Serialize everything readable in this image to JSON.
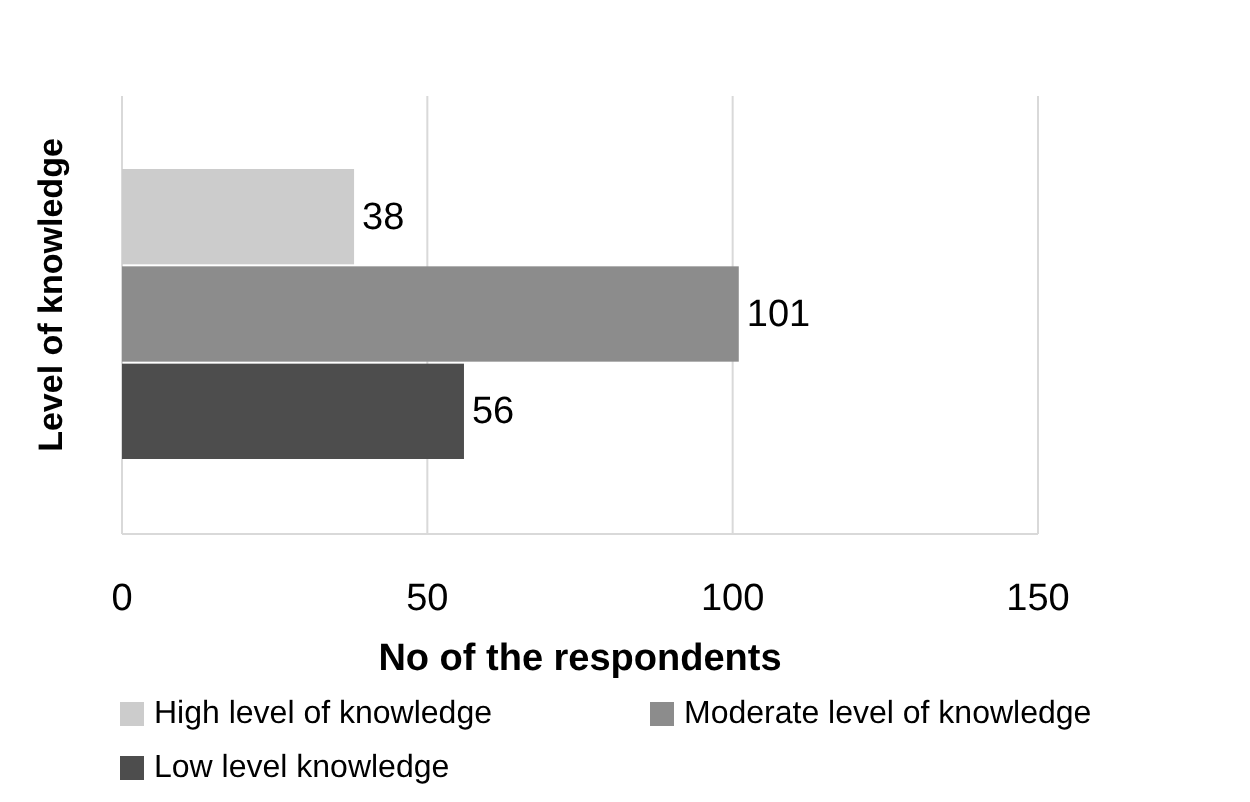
{
  "chart_data": {
    "type": "bar",
    "orientation": "horizontal",
    "categories": [
      null
    ],
    "series": [
      {
        "name": "High level of knowledge",
        "color": "#cccccc",
        "values": [
          38
        ]
      },
      {
        "name": "Moderate level of knowledge",
        "color": "#8c8c8c",
        "values": [
          101
        ]
      },
      {
        "name": "Low level knowledge",
        "color": "#4d4d4d",
        "values": [
          56
        ]
      }
    ],
    "xlim": [
      0,
      150
    ],
    "xticks": [
      0,
      50,
      100,
      150
    ],
    "xlabel": "No of the respondents",
    "ylabel": "Level of knowledge",
    "grid": "x",
    "legend": "bottom",
    "data_labels": true
  }
}
